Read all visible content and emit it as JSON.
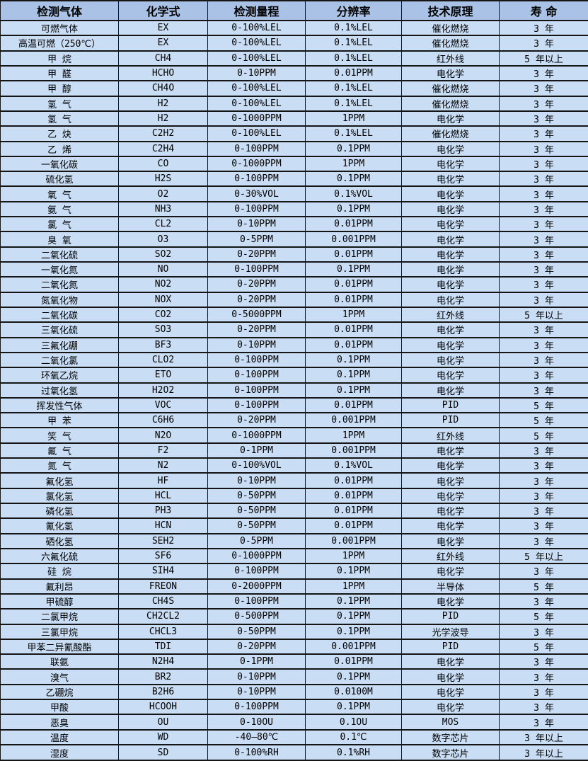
{
  "table": {
    "headers": [
      "检测气体",
      "化学式",
      "检测量程",
      "分辨率",
      "技术原理",
      "寿 命"
    ],
    "column_keys": [
      "gas",
      "formula",
      "range",
      "resolution",
      "principle",
      "lifespan"
    ],
    "rows": [
      [
        "可燃气体",
        "EX",
        "0-100%LEL",
        "0.1%LEL",
        "催化燃烧",
        "3 年"
      ],
      [
        "高温可燃（250℃）",
        "EX",
        "0-100%LEL",
        "0.1%LEL",
        "催化燃烧",
        "3 年"
      ],
      [
        "甲 烷",
        "CH4",
        "0-100%LEL",
        "0.1%LEL",
        "红外线",
        "5 年以上"
      ],
      [
        "甲 醛",
        "HCHO",
        "0-10PPM",
        "0.01PPM",
        "电化学",
        "3 年"
      ],
      [
        "甲 醇",
        "CH4O",
        "0-100%LEL",
        "0.1%LEL",
        "催化燃烧",
        "3 年"
      ],
      [
        "氢 气",
        "H2",
        "0-100%LEL",
        "0.1%LEL",
        "催化燃烧",
        "3 年"
      ],
      [
        "氢 气",
        "H2",
        "0-1000PPM",
        "1PPM",
        "电化学",
        "3 年"
      ],
      [
        "乙 炔",
        "C2H2",
        "0-100%LEL",
        "0.1%LEL",
        "催化燃烧",
        "3 年"
      ],
      [
        "乙 烯",
        "C2H4",
        "0-100PPM",
        "0.1PPM",
        "电化学",
        "3 年"
      ],
      [
        "一氧化碳",
        "CO",
        "0-1000PPM",
        "1PPM",
        "电化学",
        "3 年"
      ],
      [
        "硫化氢",
        "H2S",
        "0-100PPM",
        "0.1PPM",
        "电化学",
        "3 年"
      ],
      [
        "氧 气",
        "O2",
        "0-30%VOL",
        "0.1%VOL",
        "电化学",
        "3 年"
      ],
      [
        "氨 气",
        "NH3",
        "0-100PPM",
        "0.1PPM",
        "电化学",
        "3 年"
      ],
      [
        "氯 气",
        "CL2",
        "0-10PPM",
        "0.01PPM",
        "电化学",
        "3 年"
      ],
      [
        "臭 氧",
        "O3",
        "0-5PPM",
        "0.001PPM",
        "电化学",
        "3 年"
      ],
      [
        "二氧化硫",
        "SO2",
        "0-20PPM",
        "0.01PPM",
        "电化学",
        "3 年"
      ],
      [
        "一氧化氮",
        "NO",
        "0-100PPM",
        "0.1PPM",
        "电化学",
        "3 年"
      ],
      [
        "二氧化氮",
        "NO2",
        "0-20PPM",
        "0.01PPM",
        "电化学",
        "3 年"
      ],
      [
        "氮氧化物",
        "NOX",
        "0-20PPM",
        "0.01PPM",
        "电化学",
        "3 年"
      ],
      [
        "二氧化碳",
        "CO2",
        "0-5000PPM",
        "1PPM",
        "红外线",
        "5 年以上"
      ],
      [
        "三氧化硫",
        "SO3",
        "0-20PPM",
        "0.01PPM",
        "电化学",
        "3 年"
      ],
      [
        "三氟化硼",
        "BF3",
        "0-10PPM",
        "0.01PPM",
        "电化学",
        "3 年"
      ],
      [
        "二氧化氯",
        "CLO2",
        "0-100PPM",
        "0.1PPM",
        "电化学",
        "3 年"
      ],
      [
        "环氧乙烷",
        "ETO",
        "0-100PPM",
        "0.1PPM",
        "电化学",
        "3 年"
      ],
      [
        "过氧化氢",
        "H2O2",
        "0-100PPM",
        "0.1PPM",
        "电化学",
        "3 年"
      ],
      [
        "挥发性气体",
        "VOC",
        "0-100PPM",
        "0.01PPM",
        "PID",
        "5 年"
      ],
      [
        "甲 苯",
        "C6H6",
        "0-20PPM",
        "0.001PPM",
        "PID",
        "5 年"
      ],
      [
        "笑 气",
        "N2O",
        "0-1000PPM",
        "1PPM",
        "红外线",
        "5 年"
      ],
      [
        "氟 气",
        "F2",
        "0-1PPM",
        "0.001PPM",
        "电化学",
        "3 年"
      ],
      [
        "氮 气",
        "N2",
        "0-100%VOL",
        "0.1%VOL",
        "电化学",
        "3 年"
      ],
      [
        "氟化氢",
        "HF",
        "0-10PPM",
        "0.01PPM",
        "电化学",
        "3 年"
      ],
      [
        "氯化氢",
        "HCL",
        "0-50PPM",
        "0.01PPM",
        "电化学",
        "3 年"
      ],
      [
        "磷化氢",
        "PH3",
        "0-50PPM",
        "0.01PPM",
        "电化学",
        "3 年"
      ],
      [
        "氰化氢",
        "HCN",
        "0-50PPM",
        "0.01PPM",
        "电化学",
        "3 年"
      ],
      [
        "硒化氢",
        "SEH2",
        "0-5PPM",
        "0.001PPM",
        "电化学",
        "3 年"
      ],
      [
        "六氟化硫",
        "SF6",
        "0-1000PPM",
        "1PPM",
        "红外线",
        "5 年以上"
      ],
      [
        "硅 烷",
        "SIH4",
        "0-100PPM",
        "0.1PPM",
        "电化学",
        "3 年"
      ],
      [
        "氟利昂",
        "FREON",
        "0-2000PPM",
        "1PPM",
        "半导体",
        "5 年"
      ],
      [
        "甲硫醇",
        "CH4S",
        "0-100PPM",
        "0.1PPM",
        "电化学",
        "3 年"
      ],
      [
        "二氯甲烷",
        "CH2CL2",
        "0-500PPM",
        "0.1PPM",
        "PID",
        "5 年"
      ],
      [
        "三氯甲烷",
        "CHCL3",
        "0-50PPM",
        "0.1PPM",
        "光学波导",
        "3 年"
      ],
      [
        "甲苯二异氰酸酯",
        "TDI",
        "0-20PPM",
        "0.001PPM",
        "PID",
        "5 年"
      ],
      [
        "联氨",
        "N2H4",
        "0-1PPM",
        "0.01PPM",
        "电化学",
        "3 年"
      ],
      [
        "溴气",
        "BR2",
        "0-10PPM",
        "0.1PPM",
        "电化学",
        "3 年"
      ],
      [
        "乙硼烷",
        "B2H6",
        "0-10PPM",
        "0.0100M",
        "电化学",
        "3 年"
      ],
      [
        "甲酸",
        "HCOOH",
        "0-100PPM",
        "0.1PPM",
        "电化学",
        "3 年"
      ],
      [
        "恶臭",
        "OU",
        "0-10OU",
        "0.1OU",
        "MOS",
        "3 年"
      ],
      [
        "温度",
        "WD",
        "-40—80℃",
        "0.1℃",
        "数字芯片",
        "3 年以上"
      ],
      [
        "湿度",
        "SD",
        "0-100%RH",
        "0.1%RH",
        "数字芯片",
        "3 年以上"
      ]
    ]
  },
  "colors": {
    "header_bg": "#a9c2e5",
    "row_bg": "#c9ddf5",
    "border": "#151515",
    "text": "#000000"
  }
}
